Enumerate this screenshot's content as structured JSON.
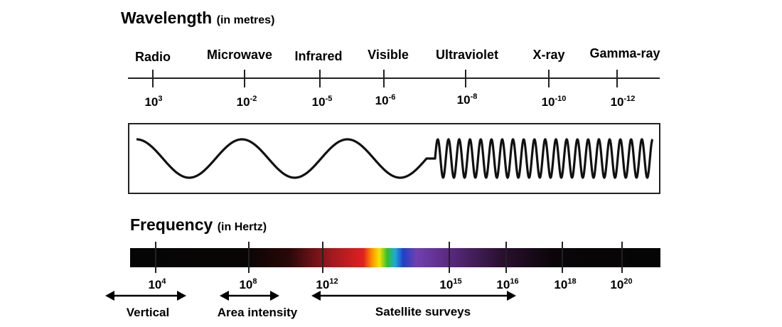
{
  "wavelength": {
    "title": "Wavelength",
    "unit": "(in metres)",
    "bands": [
      {
        "name": "Radio",
        "base": "10",
        "exp": "3"
      },
      {
        "name": "Microwave",
        "base": "10",
        "exp": "-2"
      },
      {
        "name": "Infrared",
        "base": "10",
        "exp": "-5"
      },
      {
        "name": "Visible",
        "base": "10",
        "exp": "-6"
      },
      {
        "name": "Ultraviolet",
        "base": "10",
        "exp": "-8"
      },
      {
        "name": "X-ray",
        "base": "10",
        "exp": "-10"
      },
      {
        "name": "Gamma-ray",
        "base": "10",
        "exp": "-12"
      }
    ]
  },
  "frequency": {
    "title": "Frequency",
    "unit": "(in Hertz)",
    "ticks": [
      {
        "base": "10",
        "exp": "4"
      },
      {
        "base": "10",
        "exp": "8"
      },
      {
        "base": "10",
        "exp": "12"
      },
      {
        "base": "10",
        "exp": "15"
      },
      {
        "base": "10",
        "exp": "16"
      },
      {
        "base": "10",
        "exp": "18"
      },
      {
        "base": "10",
        "exp": "20"
      }
    ]
  },
  "applications": [
    {
      "label": "Vertical"
    },
    {
      "label": "Area intensity"
    },
    {
      "label": "Satellite surveys"
    }
  ],
  "colors": {
    "line": "#222222",
    "spectrum_dark": "#050505",
    "spectrum_red": "#c0202a",
    "spectrum_violet": "#7b3fa8"
  }
}
